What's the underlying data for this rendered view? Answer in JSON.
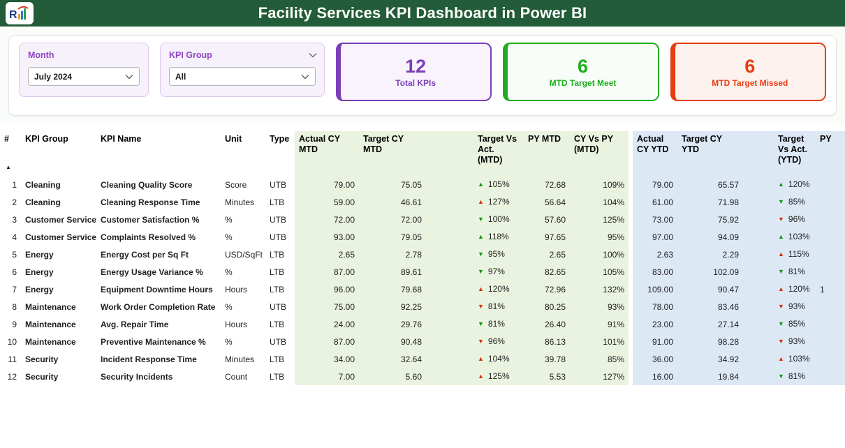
{
  "theme": {
    "header_bg": "#235c38",
    "mtd_bg": "#eaf3df",
    "ytd_bg": "#dde8f5",
    "trend_good": "#149414",
    "trend_bad": "#d23313",
    "slicer_accent": "#8c44c0"
  },
  "header": {
    "title": "Facility Services KPI Dashboard in Power BI"
  },
  "filters": {
    "month": {
      "label": "Month",
      "value": "July 2024"
    },
    "kpi_group": {
      "label": "KPI Group",
      "value": "All"
    }
  },
  "cards": [
    {
      "value": "12",
      "label": "Total KPIs",
      "accent": "#7a3fb8",
      "bg": "#f8f3fc"
    },
    {
      "value": "6",
      "label": "MTD Target Meet",
      "accent": "#1ead1e",
      "bg": "#f9fdf9"
    },
    {
      "value": "6",
      "label": "MTD Target Missed",
      "accent": "#e83d12",
      "bg": "#fdf2ee"
    }
  ],
  "table": {
    "columns": [
      {
        "key": "n",
        "label": "#",
        "group": "plain",
        "align": "right",
        "sort": "asc"
      },
      {
        "key": "group",
        "label": "KPI Group",
        "group": "plain",
        "align": "left"
      },
      {
        "key": "name",
        "label": "KPI Name",
        "group": "plain",
        "align": "left"
      },
      {
        "key": "unit",
        "label": "Unit",
        "group": "plain",
        "align": "left"
      },
      {
        "key": "type",
        "label": "Type",
        "group": "plain",
        "align": "left"
      },
      {
        "key": "am",
        "label": "Actual CY MTD",
        "group": "mtd",
        "align": "right"
      },
      {
        "key": "tm",
        "label": "Target CY MTD",
        "group": "mtd",
        "align": "right"
      },
      {
        "key": "gap1",
        "label": "",
        "group": "mtd",
        "align": "left"
      },
      {
        "key": "tvam",
        "label": "Target Vs Act. (MTD)",
        "group": "mtd",
        "align": "left",
        "kind": "trend"
      },
      {
        "key": "pym",
        "label": "PY MTD",
        "group": "mtd",
        "align": "right"
      },
      {
        "key": "cypy",
        "label": "CY Vs PY (MTD)",
        "group": "mtd",
        "align": "right"
      },
      {
        "key": "sep",
        "label": "",
        "group": "sep",
        "align": "left"
      },
      {
        "key": "ay",
        "label": "Actual CY YTD",
        "group": "ytd",
        "align": "right"
      },
      {
        "key": "ty",
        "label": "Target CY YTD",
        "group": "ytd",
        "align": "right"
      },
      {
        "key": "gap2",
        "label": "",
        "group": "ytd",
        "align": "left"
      },
      {
        "key": "tvay",
        "label": "Target Vs Act. (YTD)",
        "group": "ytd",
        "align": "left",
        "kind": "trend"
      },
      {
        "key": "pyy",
        "label": "PY",
        "group": "ytd",
        "align": "left"
      }
    ],
    "rows": [
      {
        "n": "1",
        "group": "Cleaning",
        "name": "Cleaning Quality Score",
        "unit": "Score",
        "type": "UTB",
        "am": "79.00",
        "tm": "75.05",
        "tvam": {
          "dir": "up",
          "status": "good",
          "value": "105%"
        },
        "pym": "72.68",
        "cypy": "109%",
        "ay": "79.00",
        "ty": "65.57",
        "tvay": {
          "dir": "up",
          "status": "good",
          "value": "120%"
        },
        "pyy": ""
      },
      {
        "n": "2",
        "group": "Cleaning",
        "name": "Cleaning Response Time",
        "unit": "Minutes",
        "type": "LTB",
        "am": "59.00",
        "tm": "46.61",
        "tvam": {
          "dir": "up",
          "status": "bad",
          "value": "127%"
        },
        "pym": "56.64",
        "cypy": "104%",
        "ay": "61.00",
        "ty": "71.98",
        "tvay": {
          "dir": "down",
          "status": "good",
          "value": "85%"
        },
        "pyy": ""
      },
      {
        "n": "3",
        "group": "Customer Service",
        "name": "Customer Satisfaction %",
        "unit": "%",
        "type": "UTB",
        "am": "72.00",
        "tm": "72.00",
        "tvam": {
          "dir": "down",
          "status": "good",
          "value": "100%"
        },
        "pym": "57.60",
        "cypy": "125%",
        "ay": "73.00",
        "ty": "75.92",
        "tvay": {
          "dir": "down",
          "status": "bad",
          "value": "96%"
        },
        "pyy": ""
      },
      {
        "n": "4",
        "group": "Customer Service",
        "name": "Complaints Resolved %",
        "unit": "%",
        "type": "UTB",
        "am": "93.00",
        "tm": "79.05",
        "tvam": {
          "dir": "up",
          "status": "good",
          "value": "118%"
        },
        "pym": "97.65",
        "cypy": "95%",
        "ay": "97.00",
        "ty": "94.09",
        "tvay": {
          "dir": "up",
          "status": "good",
          "value": "103%"
        },
        "pyy": ""
      },
      {
        "n": "5",
        "group": "Energy",
        "name": "Energy Cost per Sq Ft",
        "unit": "USD/SqFt",
        "type": "LTB",
        "am": "2.65",
        "tm": "2.78",
        "tvam": {
          "dir": "down",
          "status": "good",
          "value": "95%"
        },
        "pym": "2.65",
        "cypy": "100%",
        "ay": "2.63",
        "ty": "2.29",
        "tvay": {
          "dir": "up",
          "status": "bad",
          "value": "115%"
        },
        "pyy": ""
      },
      {
        "n": "6",
        "group": "Energy",
        "name": "Energy Usage Variance %",
        "unit": "%",
        "type": "LTB",
        "am": "87.00",
        "tm": "89.61",
        "tvam": {
          "dir": "down",
          "status": "good",
          "value": "97%"
        },
        "pym": "82.65",
        "cypy": "105%",
        "ay": "83.00",
        "ty": "102.09",
        "tvay": {
          "dir": "down",
          "status": "good",
          "value": "81%"
        },
        "pyy": ""
      },
      {
        "n": "7",
        "group": "Energy",
        "name": "Equipment Downtime Hours",
        "unit": "Hours",
        "type": "LTB",
        "am": "96.00",
        "tm": "79.68",
        "tvam": {
          "dir": "up",
          "status": "bad",
          "value": "120%"
        },
        "pym": "72.96",
        "cypy": "132%",
        "ay": "109.00",
        "ty": "90.47",
        "tvay": {
          "dir": "up",
          "status": "bad",
          "value": "120%"
        },
        "pyy": "1"
      },
      {
        "n": "8",
        "group": "Maintenance",
        "name": "Work Order Completion Rate",
        "unit": "%",
        "type": "UTB",
        "am": "75.00",
        "tm": "92.25",
        "tvam": {
          "dir": "down",
          "status": "bad",
          "value": "81%"
        },
        "pym": "80.25",
        "cypy": "93%",
        "ay": "78.00",
        "ty": "83.46",
        "tvay": {
          "dir": "down",
          "status": "bad",
          "value": "93%"
        },
        "pyy": ""
      },
      {
        "n": "9",
        "group": "Maintenance",
        "name": "Avg. Repair Time",
        "unit": "Hours",
        "type": "LTB",
        "am": "24.00",
        "tm": "29.76",
        "tvam": {
          "dir": "down",
          "status": "good",
          "value": "81%"
        },
        "pym": "26.40",
        "cypy": "91%",
        "ay": "23.00",
        "ty": "27.14",
        "tvay": {
          "dir": "down",
          "status": "good",
          "value": "85%"
        },
        "pyy": ""
      },
      {
        "n": "10",
        "group": "Maintenance",
        "name": "Preventive Maintenance %",
        "unit": "%",
        "type": "UTB",
        "am": "87.00",
        "tm": "90.48",
        "tvam": {
          "dir": "down",
          "status": "bad",
          "value": "96%"
        },
        "pym": "86.13",
        "cypy": "101%",
        "ay": "91.00",
        "ty": "98.28",
        "tvay": {
          "dir": "down",
          "status": "bad",
          "value": "93%"
        },
        "pyy": ""
      },
      {
        "n": "11",
        "group": "Security",
        "name": "Incident Response Time",
        "unit": "Minutes",
        "type": "LTB",
        "am": "34.00",
        "tm": "32.64",
        "tvam": {
          "dir": "up",
          "status": "bad",
          "value": "104%"
        },
        "pym": "39.78",
        "cypy": "85%",
        "ay": "36.00",
        "ty": "34.92",
        "tvay": {
          "dir": "up",
          "status": "bad",
          "value": "103%"
        },
        "pyy": ""
      },
      {
        "n": "12",
        "group": "Security",
        "name": "Security Incidents",
        "unit": "Count",
        "type": "LTB",
        "am": "7.00",
        "tm": "5.60",
        "tvam": {
          "dir": "up",
          "status": "bad",
          "value": "125%"
        },
        "pym": "5.53",
        "cypy": "127%",
        "ay": "16.00",
        "ty": "19.84",
        "tvay": {
          "dir": "down",
          "status": "good",
          "value": "81%"
        },
        "pyy": ""
      }
    ]
  }
}
